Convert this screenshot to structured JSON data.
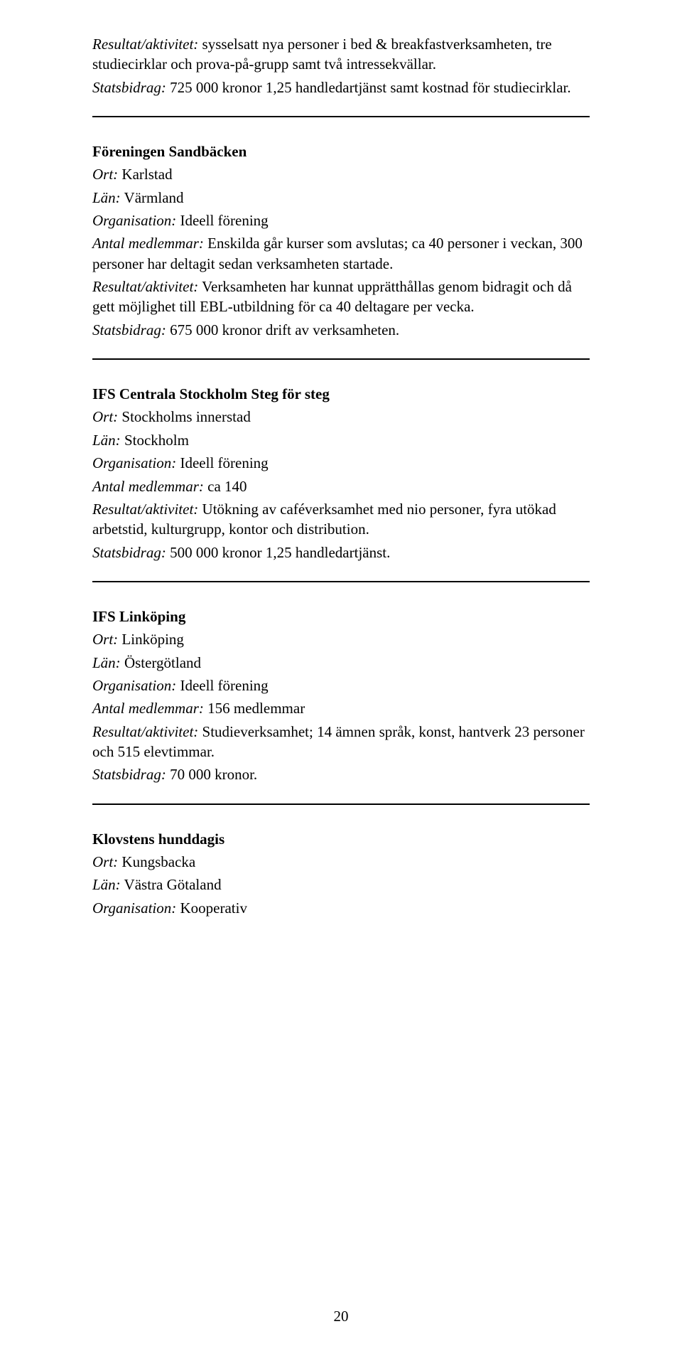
{
  "page_number": "20",
  "entries": [
    {
      "title": null,
      "lines": [
        {
          "label": "Resultat/aktivitet:",
          "text": " sysselsatt nya personer i bed & breakfastverksamheten, tre studiecirklar och prova-på-grupp samt två intressekvällar."
        },
        {
          "label": "Statsbidrag:",
          "text": " 725 000 kronor 1,25 handledartjänst samt kostnad för studiecirklar."
        }
      ]
    },
    {
      "title": "Föreningen Sandbäcken",
      "lines": [
        {
          "label": "Ort:",
          "text": " Karlstad"
        },
        {
          "label": "Län:",
          "text": " Värmland"
        },
        {
          "label": "Organisation:",
          "text": " Ideell förening"
        },
        {
          "label": "Antal medlemmar:",
          "text": " Enskilda går kurser som avslutas; ca 40 personer i veckan, 300 personer har deltagit sedan verksamheten startade."
        },
        {
          "label": "Resultat/aktivitet:",
          "text": " Verksamheten har kunnat upprätthållas genom bidragit och då gett möjlighet till EBL-utbildning för ca 40 deltagare per vecka."
        },
        {
          "label": "Statsbidrag:",
          "text": " 675 000 kronor drift av verksamheten."
        }
      ]
    },
    {
      "title": "IFS Centrala Stockholm Steg för steg",
      "lines": [
        {
          "label": "Ort:",
          "text": " Stockholms innerstad"
        },
        {
          "label": "Län:",
          "text": " Stockholm"
        },
        {
          "label": "Organisation:",
          "text": " Ideell förening"
        },
        {
          "label": "Antal medlemmar:",
          "text": " ca 140"
        },
        {
          "label": "Resultat/aktivitet:",
          "text": " Utökning av caféverksamhet med nio personer, fyra utökad arbetstid, kulturgrupp, kontor och distribution."
        },
        {
          "label": "Statsbidrag:",
          "text": " 500 000 kronor 1,25 handledartjänst."
        }
      ]
    },
    {
      "title": "IFS Linköping",
      "lines": [
        {
          "label": "Ort:",
          "text": " Linköping"
        },
        {
          "label": "Län:",
          "text": " Östergötland"
        },
        {
          "label": "Organisation:",
          "text": " Ideell förening"
        },
        {
          "label": "Antal medlemmar:",
          "text": " 156 medlemmar"
        },
        {
          "label": "Resultat/aktivitet:",
          "text": " Studieverksamhet; 14 ämnen språk, konst, hantverk 23 personer och 515 elevtimmar."
        },
        {
          "label": "Statsbidrag:",
          "text": " 70 000 kronor."
        }
      ]
    },
    {
      "title": "Klovstens hunddagis",
      "lines": [
        {
          "label": "Ort:",
          "text": " Kungsbacka"
        },
        {
          "label": "Län:",
          "text": " Västra Götaland"
        },
        {
          "label": "Organisation:",
          "text": " Kooperativ"
        }
      ]
    }
  ]
}
